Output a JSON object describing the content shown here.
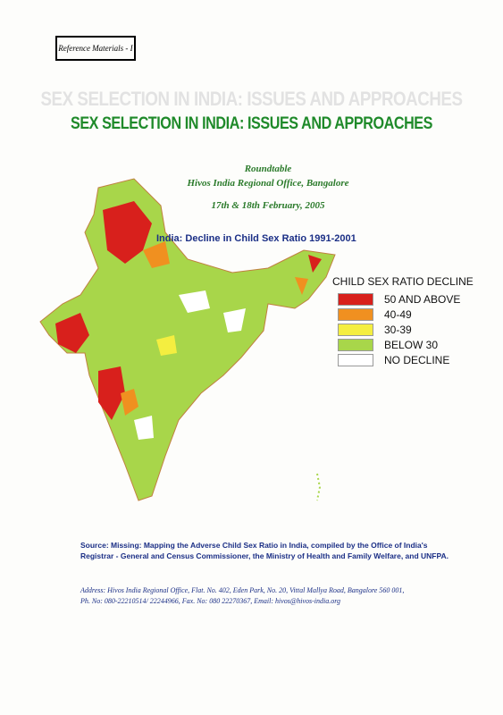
{
  "header": {
    "tag": "Reference Materials - I",
    "title": "SEX SELECTION IN INDIA: ISSUES AND APPROACHES",
    "event": "Roundtable",
    "venue": "Hivos India Regional Office, Bangalore",
    "date": "17th & 18th February, 2005"
  },
  "map": {
    "title": "India: Decline in Child Sex Ratio 1991-2001",
    "legend": {
      "title": "CHILD SEX RATIO DECLINE",
      "items": [
        {
          "label": "50 AND ABOVE",
          "color": "#d8201c"
        },
        {
          "label": "40-49",
          "color": "#f09020"
        },
        {
          "label": "30-39",
          "color": "#f4ee40"
        },
        {
          "label": "BELOW 30",
          "color": "#a8d64a"
        },
        {
          "label": "NO DECLINE",
          "color": "#ffffff"
        }
      ]
    }
  },
  "source": "Source: Missing: Mapping the Adverse Child Sex Ratio in India, compiled by the Office of India's Registrar - General and Census Commissioner, the Ministry of Health and Family Welfare, and UNFPA.",
  "address": {
    "line1": "Address: Hivos India Regional Office, Flat. No. 402, Eden Park, No. 20, Vittal Mallya Road, Bangalore 560 001,",
    "line2": "Ph. No: 080-22210514/ 22244966, Fax. No: 080 22270367, Email: hivos@hivos-india.org"
  }
}
